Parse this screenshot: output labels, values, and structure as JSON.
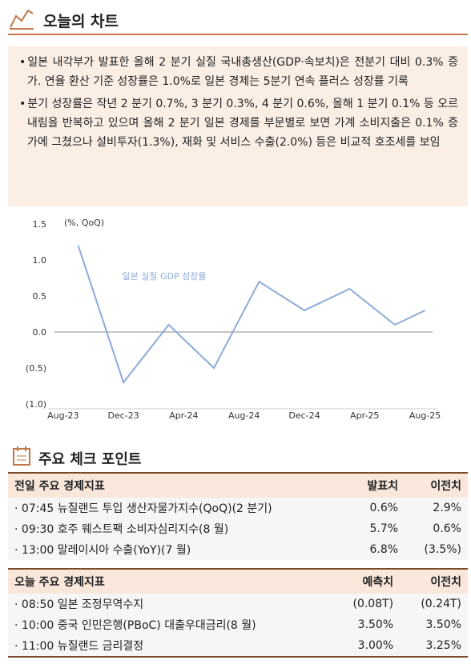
{
  "header": {
    "title": "오늘의 차트"
  },
  "bullets": [
    "일본 내각부가 발표한 올해 2 분기 실질 국내총생산(GDP·속보치)은 전분기 대비 0.3% 증가. 연율 환산 기준 성장률은 1.0%로 일본 경제는 5분기 연속 플러스 성장률 기록",
    "분기 성장률은 작년 2 분기 0.7%, 3 분기 0.3%, 4 분기 0.6%, 올해 1 분기 0.1% 등 오르내림을 반복하고 있으며 올해 2 분기 일본 경제를 부문별로 보면 가계 소비지출은 0.1% 증가에 그쳤으나 설비투자(1.3%), 재화 및 서비스 수출(2.0%) 등은 비교적 호조세를 보임"
  ],
  "chart_data": {
    "type": "line",
    "y_label": "(%, QoQ)",
    "x": [
      1,
      4,
      7,
      10,
      13,
      16,
      19,
      22,
      24
    ],
    "xlim": [
      -1,
      24.5
    ],
    "xticks": [
      {
        "value": 0,
        "label": "Aug-23"
      },
      {
        "value": 4,
        "label": "Dec-23"
      },
      {
        "value": 8,
        "label": "Apr-24"
      },
      {
        "value": 12,
        "label": "Aug-24"
      },
      {
        "value": 16,
        "label": "Dec-24"
      },
      {
        "value": 20,
        "label": "Apr-25"
      },
      {
        "value": 24,
        "label": "Aug-25"
      }
    ],
    "ylim": [
      -1.0,
      1.5
    ],
    "yticks": [
      1.5,
      {
        "value": 1.0,
        "label": "1.0"
      },
      0.5,
      {
        "value": 0.0,
        "label": "0.0"
      },
      {
        "value": -0.5,
        "label": "(0.5)"
      },
      {
        "value": -1.0,
        "label": "(1.0)"
      }
    ],
    "series": [
      {
        "name": "일본 실질 GDP 성장률",
        "color": "#8eaadb",
        "values": [
          1.2,
          -0.7,
          0.1,
          -0.5,
          0.7,
          0.3,
          0.6,
          0.1,
          0.3
        ]
      }
    ]
  },
  "section": {
    "title": "주요 체크 포인트"
  },
  "tables": [
    {
      "header": [
        "전일 주요 경제지표",
        "발표치",
        "이전치"
      ],
      "rows": [
        [
          "07:45 뉴질랜드 투입 생산자물가지수(QoQ)(2 분기)",
          "0.6%",
          "2.9%"
        ],
        [
          "09:30 호주 웨스트팩 소비자심리지수(8 월)",
          "5.7%",
          "0.6%"
        ],
        [
          "13:00 말레이시아 수출(YoY)(7 월)",
          "6.8%",
          "(3.5%)"
        ]
      ]
    },
    {
      "header": [
        "오늘 주요 경제지표",
        "예측치",
        "이전치"
      ],
      "rows": [
        [
          "08:50 일본 조정무역수지",
          "(0.08T)",
          "(0.24T)"
        ],
        [
          "10:00 중국 인민은행(PBoC) 대출우대금리(8 월)",
          "3.50%",
          "3.50%"
        ],
        [
          "11:00 뉴질랜드 금리결정",
          "3.00%",
          "3.25%"
        ]
      ]
    }
  ]
}
